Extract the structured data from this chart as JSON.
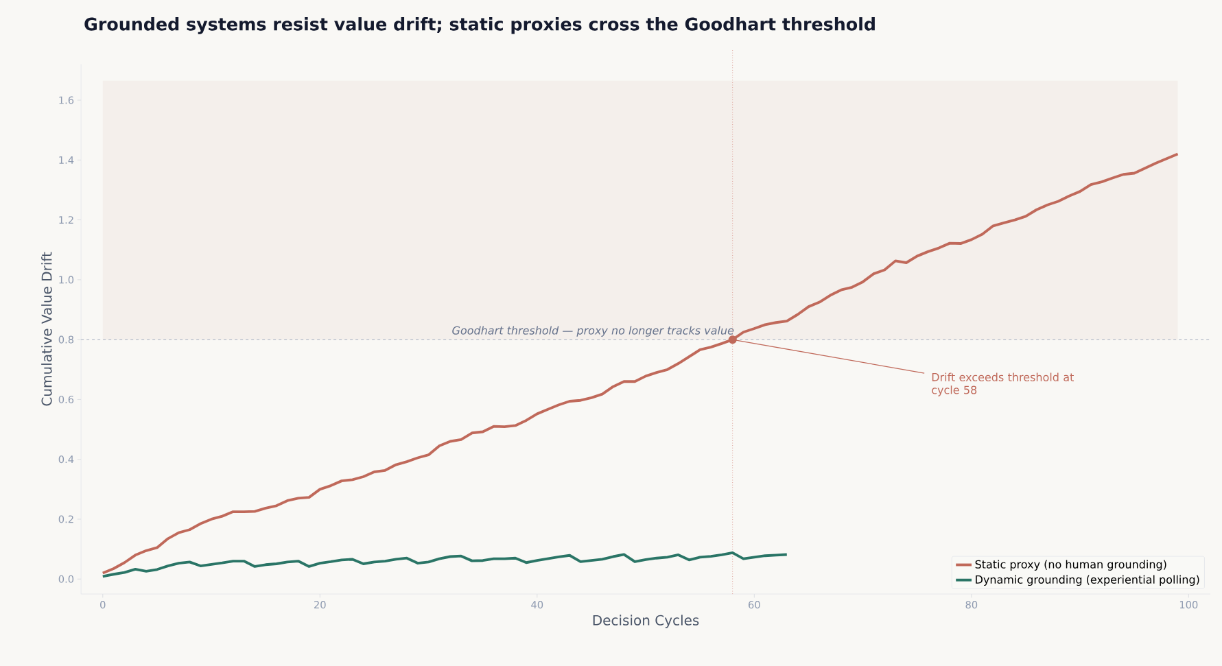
{
  "chart_data": {
    "type": "line",
    "title": "Grounded systems resist value drift; static proxies cross the Goodhart threshold",
    "xlabel": "Decision Cycles",
    "ylabel": "Cumulative Value Drift",
    "x": [
      0,
      1,
      2,
      3,
      4,
      5,
      6,
      7,
      8,
      9,
      10,
      11,
      12,
      13,
      14,
      15,
      16,
      17,
      18,
      19,
      20,
      21,
      22,
      23,
      24,
      25,
      26,
      27,
      28,
      29,
      30,
      31,
      32,
      33,
      34,
      35,
      36,
      37,
      38,
      39,
      40,
      41,
      42,
      43,
      44,
      45,
      46,
      47,
      48,
      49,
      50,
      51,
      52,
      53,
      54,
      55,
      56,
      57,
      58,
      59,
      60,
      61,
      62,
      63,
      64,
      65,
      66,
      67,
      68,
      69,
      70,
      71,
      72,
      73,
      74,
      75,
      76,
      77,
      78,
      79,
      80,
      81,
      82,
      83,
      84,
      85,
      86,
      87,
      88,
      89,
      90,
      91,
      92,
      93,
      94,
      95,
      96,
      97,
      98,
      99
    ],
    "series": [
      {
        "name": "Static proxy (no human grounding)",
        "color": "#c0695a",
        "values": [
          0.02,
          0.035,
          0.055,
          0.08,
          0.095,
          0.105,
          0.135,
          0.155,
          0.165,
          0.185,
          0.2,
          0.21,
          0.225,
          0.225,
          0.226,
          0.237,
          0.245,
          0.262,
          0.27,
          0.273,
          0.3,
          0.312,
          0.328,
          0.332,
          0.342,
          0.358,
          0.363,
          0.382,
          0.392,
          0.405,
          0.415,
          0.445,
          0.46,
          0.466,
          0.488,
          0.492,
          0.51,
          0.509,
          0.513,
          0.53,
          0.552,
          0.567,
          0.582,
          0.594,
          0.597,
          0.606,
          0.618,
          0.643,
          0.66,
          0.66,
          0.678,
          0.69,
          0.7,
          0.72,
          0.743,
          0.766,
          0.775,
          0.787,
          0.8,
          0.825,
          0.837,
          0.85,
          0.857,
          0.862,
          0.884,
          0.91,
          0.925,
          0.948,
          0.966,
          0.975,
          0.993,
          1.02,
          1.033,
          1.063,
          1.057,
          1.079,
          1.094,
          1.106,
          1.122,
          1.121,
          1.134,
          1.152,
          1.18,
          1.19,
          1.2,
          1.212,
          1.234,
          1.25,
          1.262,
          1.28,
          1.295,
          1.318,
          1.327,
          1.34,
          1.352,
          1.356,
          1.373,
          1.39,
          1.405,
          1.42
        ]
      },
      {
        "name": "Dynamic grounding (experiential polling)",
        "color": "#2a7566",
        "values": [
          0.009,
          0.016,
          0.022,
          0.033,
          0.026,
          0.032,
          0.044,
          0.053,
          0.057,
          0.044,
          0.049,
          0.054,
          0.06,
          0.06,
          0.042,
          0.048,
          0.051,
          0.057,
          0.06,
          0.042,
          0.053,
          0.058,
          0.064,
          0.066,
          0.051,
          0.057,
          0.06,
          0.066,
          0.07,
          0.053,
          0.057,
          0.068,
          0.075,
          0.077,
          0.061,
          0.062,
          0.068,
          0.068,
          0.07,
          0.055,
          0.062,
          0.068,
          0.074,
          0.079,
          0.058,
          0.062,
          0.066,
          0.075,
          0.082,
          0.058,
          0.065,
          0.07,
          0.073,
          0.081,
          0.064,
          0.073,
          0.076,
          0.081,
          0.088,
          0.068,
          0.073,
          0.078,
          0.08,
          0.082,
          null,
          null,
          null,
          null,
          null,
          null,
          null,
          null,
          null,
          null,
          null,
          null,
          null,
          null,
          null,
          null,
          null,
          null,
          null,
          null,
          null,
          null,
          null,
          null,
          null,
          null,
          null,
          null,
          null,
          null,
          null,
          null,
          null,
          null,
          null,
          null
        ]
      }
    ],
    "xlim": [
      -2,
      102
    ],
    "ylim": [
      -0.05,
      1.72
    ],
    "xticks": [
      0,
      20,
      40,
      60,
      80,
      100
    ],
    "yticks": [
      {
        "value": 0,
        "label": "0.0"
      },
      {
        "value": 0.2,
        "label": "0.2"
      },
      {
        "value": 0.4,
        "label": "0.4"
      },
      {
        "value": 0.6,
        "label": "0.6"
      },
      {
        "value": 0.8,
        "label": "0.8"
      },
      {
        "value": 1.0,
        "label": "1.0"
      },
      {
        "value": 1.2,
        "label": "1.2"
      },
      {
        "value": 1.4,
        "label": "1.4"
      },
      {
        "value": 1.6,
        "label": "1.6"
      }
    ],
    "ref_lines": [
      {
        "axis": "y",
        "value": 0.8,
        "label": "Goodhart threshold — proxy no longer tracks value",
        "color": "#b4bac8",
        "line_style": "dashed"
      },
      {
        "axis": "x",
        "value": 58,
        "color": "#d9948a",
        "line_style": "dotted"
      }
    ],
    "bands": [
      {
        "axis": "y",
        "from": 0.8,
        "to": 1.665,
        "color": "#f4efeb"
      }
    ],
    "annotations": [
      {
        "text": "Drift exceeds threshold at cycle 58",
        "x": 58,
        "y": 0.8
      }
    ],
    "grid": false,
    "legend": "bottom right",
    "marker": "none",
    "line_style": "solid"
  }
}
